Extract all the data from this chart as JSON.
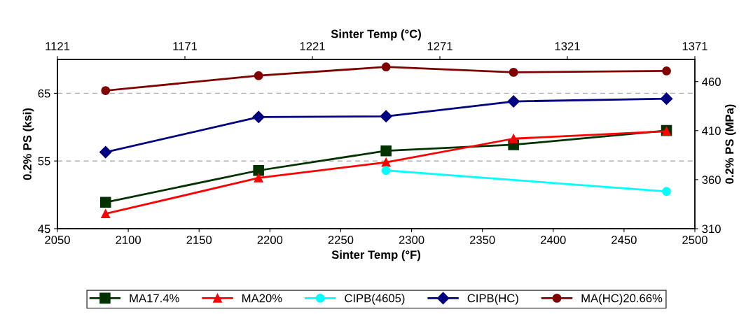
{
  "chart_data": {
    "type": "line",
    "xlabel": "Sinter Temp (°F)",
    "x2label": "Sinter Temp (°C)",
    "ylabel": "0.2% PS (ksi)",
    "y2label": "0.2% PS (MPa)",
    "xlim": [
      2050,
      2500
    ],
    "xticks": [
      2050,
      2100,
      2150,
      2200,
      2250,
      2300,
      2350,
      2400,
      2450,
      2500
    ],
    "x2lim": [
      1121,
      1371
    ],
    "x2ticks": [
      1121,
      1171,
      1221,
      1271,
      1321,
      1371
    ],
    "ylim": [
      45,
      70
    ],
    "yticks": [
      45,
      55,
      65
    ],
    "y2lim": [
      310,
      482.6
    ],
    "y2ticks": [
      310,
      360,
      410,
      460
    ],
    "grid": "y",
    "legend": "bottom",
    "series": [
      {
        "name": "MA17.4%",
        "color": "#003300",
        "marker": "square",
        "x": [
          2084,
          2192,
          2282,
          2372,
          2480
        ],
        "values": [
          48.9,
          53.6,
          56.5,
          57.4,
          59.5
        ]
      },
      {
        "name": "MA20%",
        "color": "#ff0000",
        "marker": "triangle",
        "x": [
          2084,
          2192,
          2282,
          2372,
          2480
        ],
        "values": [
          47.2,
          52.5,
          54.8,
          58.3,
          59.4
        ]
      },
      {
        "name": "CIPB(4605)",
        "color": "#00ffff",
        "marker": "circle",
        "x": [
          2282,
          2480
        ],
        "values": [
          53.6,
          50.5
        ]
      },
      {
        "name": "CIPB(HC)",
        "color": "#000080",
        "marker": "diamond",
        "x": [
          2084,
          2192,
          2282,
          2372,
          2480
        ],
        "values": [
          56.3,
          61.5,
          61.6,
          63.8,
          64.2
        ]
      },
      {
        "name": "MA(HC)20.66%",
        "color": "#800000",
        "marker": "circle",
        "x": [
          2084,
          2192,
          2282,
          2372,
          2480
        ],
        "values": [
          65.4,
          67.6,
          68.9,
          68.1,
          68.3
        ]
      }
    ]
  }
}
